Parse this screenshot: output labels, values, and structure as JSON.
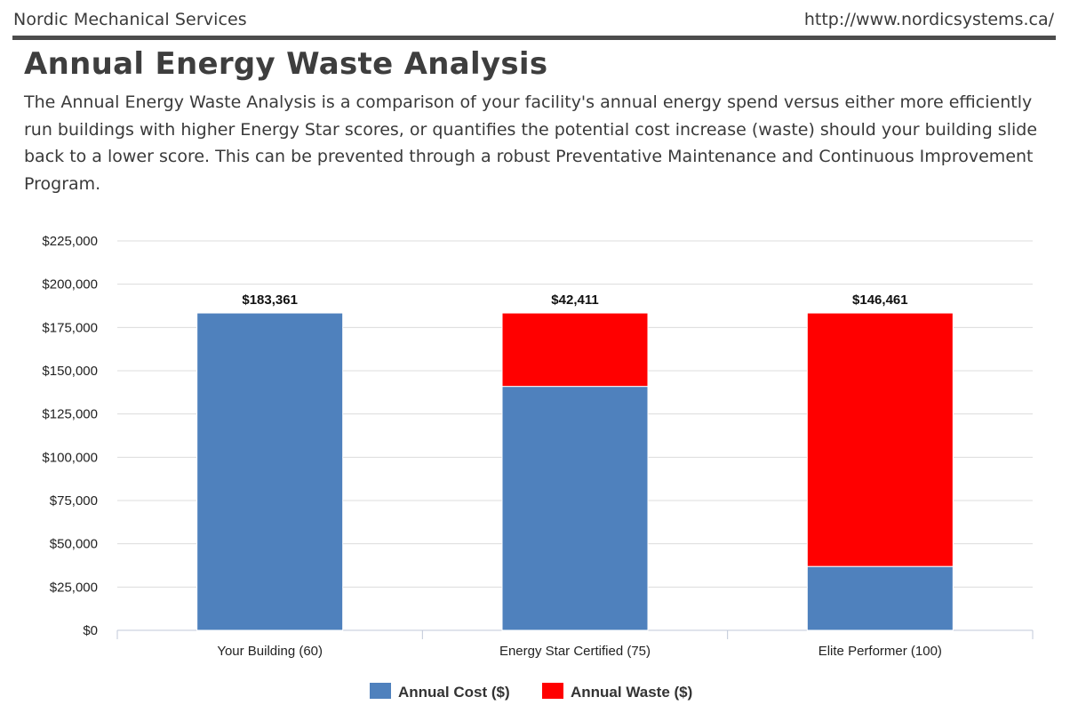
{
  "header": {
    "company": "Nordic Mechanical Services",
    "url": "http://www.nordicsystems.ca/"
  },
  "page": {
    "title": "Annual Energy Waste Analysis",
    "description": "The Annual Energy Waste Analysis is a comparison of your facility's annual energy spend versus either more efficiently run buildings with higher Energy Star scores, or quantifies the potential cost increase (waste) should your building slide back to a lower score. This can be prevented through a robust Preventative Maintenance and Continuous Improvement Program."
  },
  "chart_data": {
    "type": "bar",
    "stacked": true,
    "categories": [
      "Your Building (60)",
      "Energy Star Certified (75)",
      "Elite Performer (100)"
    ],
    "series": [
      {
        "name": "Annual Cost ($)",
        "color": "#4f81bd",
        "values": [
          183361,
          140950,
          36900
        ]
      },
      {
        "name": "Annual Waste ($)",
        "color": "#ff0000",
        "values": [
          0,
          42411,
          146461
        ]
      }
    ],
    "data_labels": [
      "$183,361",
      "$42,411",
      "$146,461"
    ],
    "ylim": [
      0,
      225000
    ],
    "yticks": [
      0,
      25000,
      50000,
      75000,
      100000,
      125000,
      150000,
      175000,
      200000,
      225000
    ],
    "ytick_labels": [
      "$0",
      "$25,000",
      "$50,000",
      "$75,000",
      "$100,000",
      "$125,000",
      "$150,000",
      "$175,000",
      "$200,000",
      "$225,000"
    ],
    "grid": true,
    "legend_position": "bottom"
  }
}
